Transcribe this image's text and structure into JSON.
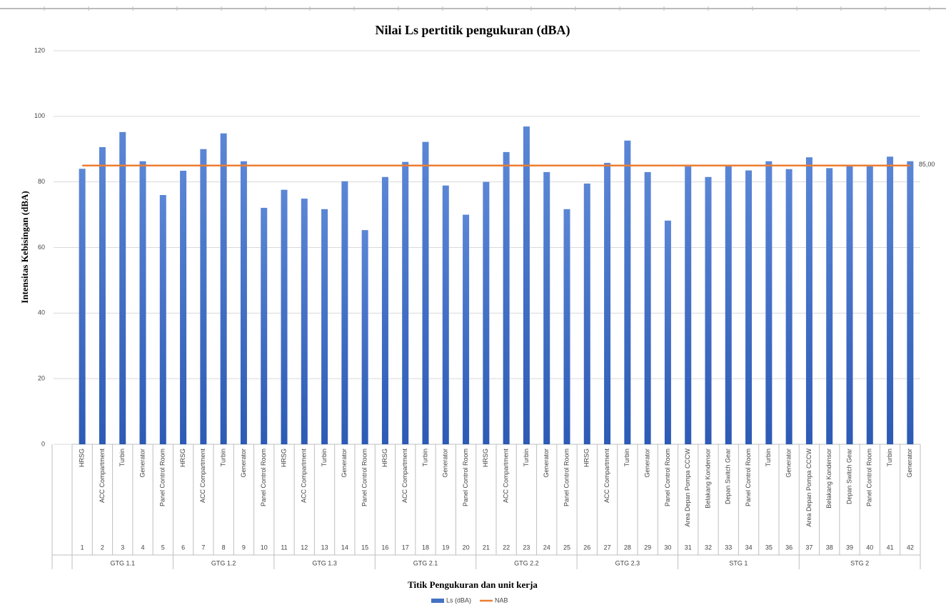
{
  "chart_data": {
    "type": "bar",
    "title": "Nilai Ls pertitik pengukuran (dBA)",
    "x_label": "Titik Pengukuran dan unit kerja",
    "y_label": "Intensitas Kebisingan (dBA)",
    "categories": [
      "HRSG",
      "ACC Compartment",
      "Turbin",
      "Generator",
      "Panel Control Room",
      "HRSG",
      "ACC Compartment",
      "Turbin",
      "Generator",
      "Panel Control Room",
      "HRSG",
      "ACC Compartment",
      "Turbin",
      "Generator",
      "Panel Control Room",
      "HRSG",
      "ACC Compartment",
      "Turbin",
      "Generator",
      "Panel Control Room",
      "HRSG",
      "ACC Compartment",
      "Turbin",
      "Generator",
      "Panel Control Room",
      "HRSG",
      "ACC Compartment",
      "Turbin",
      "Generator",
      "Panel Control Room",
      "Area Depan Pompa CCCW",
      "Belakang Kondensor",
      "Depan Switch Gear",
      "Panel Control Room",
      "Turbin",
      "Generator",
      "Area Depan Pompa CCCW",
      "Belakang Kondensor",
      "Depan Switch Gear",
      "Panel Control Room",
      "Turbin",
      "Generator"
    ],
    "point_numbers": [
      "1",
      "2",
      "3",
      "4",
      "5",
      "6",
      "7",
      "8",
      "9",
      "10",
      "11",
      "12",
      "13",
      "14",
      "15",
      "16",
      "17",
      "18",
      "19",
      "20",
      "21",
      "22",
      "23",
      "24",
      "25",
      "26",
      "27",
      "28",
      "29",
      "30",
      "31",
      "32",
      "33",
      "34",
      "35",
      "36",
      "37",
      "38",
      "39",
      "40",
      "41",
      "42"
    ],
    "groups": [
      "GTG 1.1",
      null,
      null,
      null,
      null,
      "GTG 1.2",
      null,
      null,
      null,
      null,
      "GTG 1.3",
      null,
      null,
      null,
      null,
      "GTG 2.1",
      null,
      null,
      null,
      null,
      "GTG 2.2",
      null,
      null,
      null,
      null,
      "GTG 2.3",
      null,
      null,
      null,
      null,
      "STG 1",
      null,
      null,
      null,
      null,
      null,
      "STG 2",
      null,
      null,
      null,
      null,
      null
    ],
    "series": [
      {
        "name": "Ls (dBA)",
        "type": "bar",
        "color": "#4472c4",
        "values": [
          84,
          90.6,
          95.2,
          86.3,
          76,
          83.4,
          90,
          94.8,
          86.3,
          72.1,
          77.6,
          74.9,
          71.7,
          80.2,
          65.3,
          81.5,
          86.1,
          92.2,
          78.9,
          70,
          80,
          89.1,
          96.9,
          83,
          71.7,
          79.5,
          85.8,
          92.6,
          83,
          68.2,
          84.7,
          81.5,
          84.8,
          83.5,
          86.3,
          83.9,
          87.5,
          84.2,
          84.8,
          84.8,
          87.7,
          86.3
        ]
      },
      {
        "name": "NAB",
        "type": "line",
        "color": "#ed7d31",
        "values": [
          85,
          85,
          85,
          85,
          85,
          85,
          85,
          85,
          85,
          85,
          85,
          85,
          85,
          85,
          85,
          85,
          85,
          85,
          85,
          85,
          85,
          85,
          85,
          85,
          85,
          85,
          85,
          85,
          85,
          85,
          85,
          85,
          85,
          85,
          85,
          85,
          85,
          85,
          85,
          85,
          85,
          85
        ],
        "value_labels": [
          null,
          null,
          null,
          null,
          null,
          null,
          null,
          null,
          null,
          null,
          null,
          null,
          null,
          null,
          null,
          null,
          null,
          null,
          null,
          null,
          null,
          null,
          null,
          null,
          null,
          null,
          null,
          null,
          null,
          null,
          null,
          null,
          null,
          null,
          null,
          null,
          null,
          null,
          null,
          null,
          null,
          "85,00"
        ]
      }
    ],
    "ylim": [
      0,
      120
    ],
    "yticks": [
      0,
      20,
      40,
      60,
      80,
      100,
      120
    ],
    "grid": true,
    "legend": "bottom"
  }
}
